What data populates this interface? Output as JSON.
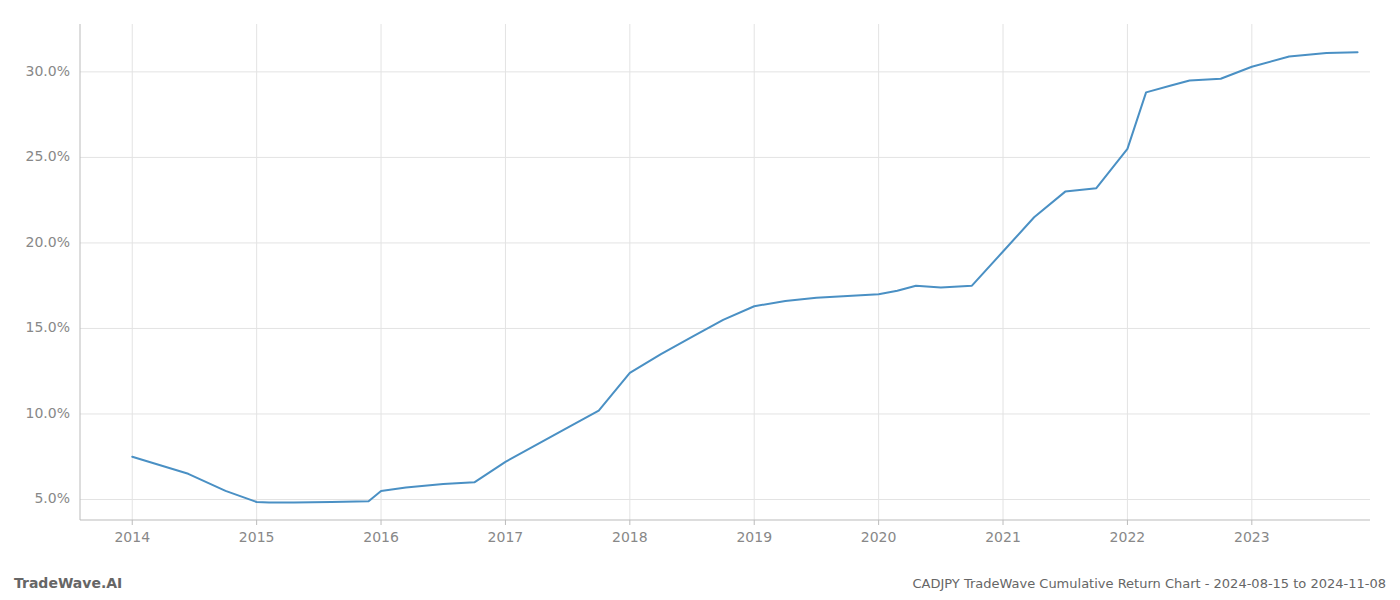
{
  "chart_data": {
    "type": "line",
    "title": "CADJPY TradeWave Cumulative Return Chart - 2024-08-15 to 2024-11-08",
    "annotations": [
      "TradeWave.AI"
    ],
    "color": "#4a90c4",
    "grid": true,
    "x": [
      2014.0,
      2014.45,
      2014.75,
      2015.0,
      2015.1,
      2015.3,
      2015.6,
      2015.9,
      2016.0,
      2016.2,
      2016.5,
      2016.75,
      2017.0,
      2017.2,
      2017.5,
      2017.75,
      2018.0,
      2018.25,
      2018.5,
      2018.75,
      2019.0,
      2019.25,
      2019.5,
      2019.75,
      2020.0,
      2020.15,
      2020.3,
      2020.5,
      2020.75,
      2021.0,
      2021.25,
      2021.5,
      2021.75,
      2022.0,
      2022.15,
      2022.35,
      2022.5,
      2022.75,
      2023.0,
      2023.3,
      2023.6,
      2023.85
    ],
    "values": [
      7.5,
      6.5,
      5.5,
      4.85,
      4.82,
      4.82,
      4.85,
      4.9,
      5.5,
      5.7,
      5.9,
      6.0,
      7.2,
      8.0,
      9.2,
      10.2,
      12.4,
      13.5,
      14.5,
      15.5,
      16.3,
      16.6,
      16.8,
      16.9,
      17.0,
      17.2,
      17.5,
      17.4,
      17.5,
      19.5,
      21.5,
      23.0,
      23.2,
      25.5,
      28.8,
      29.2,
      29.5,
      29.6,
      30.3,
      30.9,
      31.1,
      31.15
    ],
    "xlim": [
      2013.58,
      2023.95
    ],
    "ylim": [
      3.8,
      32.8
    ],
    "xticks": [
      2014,
      2015,
      2016,
      2017,
      2018,
      2019,
      2020,
      2021,
      2022,
      2023
    ],
    "yticks": [
      {
        "value": 5.0,
        "label": "5.0%"
      },
      {
        "value": 10.0,
        "label": "10.0%"
      },
      {
        "value": 15.0,
        "label": "15.0%"
      },
      {
        "value": 20.0,
        "label": "20.0%"
      },
      {
        "value": 25.0,
        "label": "25.0%"
      },
      {
        "value": 30.0,
        "label": "30.0%"
      }
    ]
  }
}
